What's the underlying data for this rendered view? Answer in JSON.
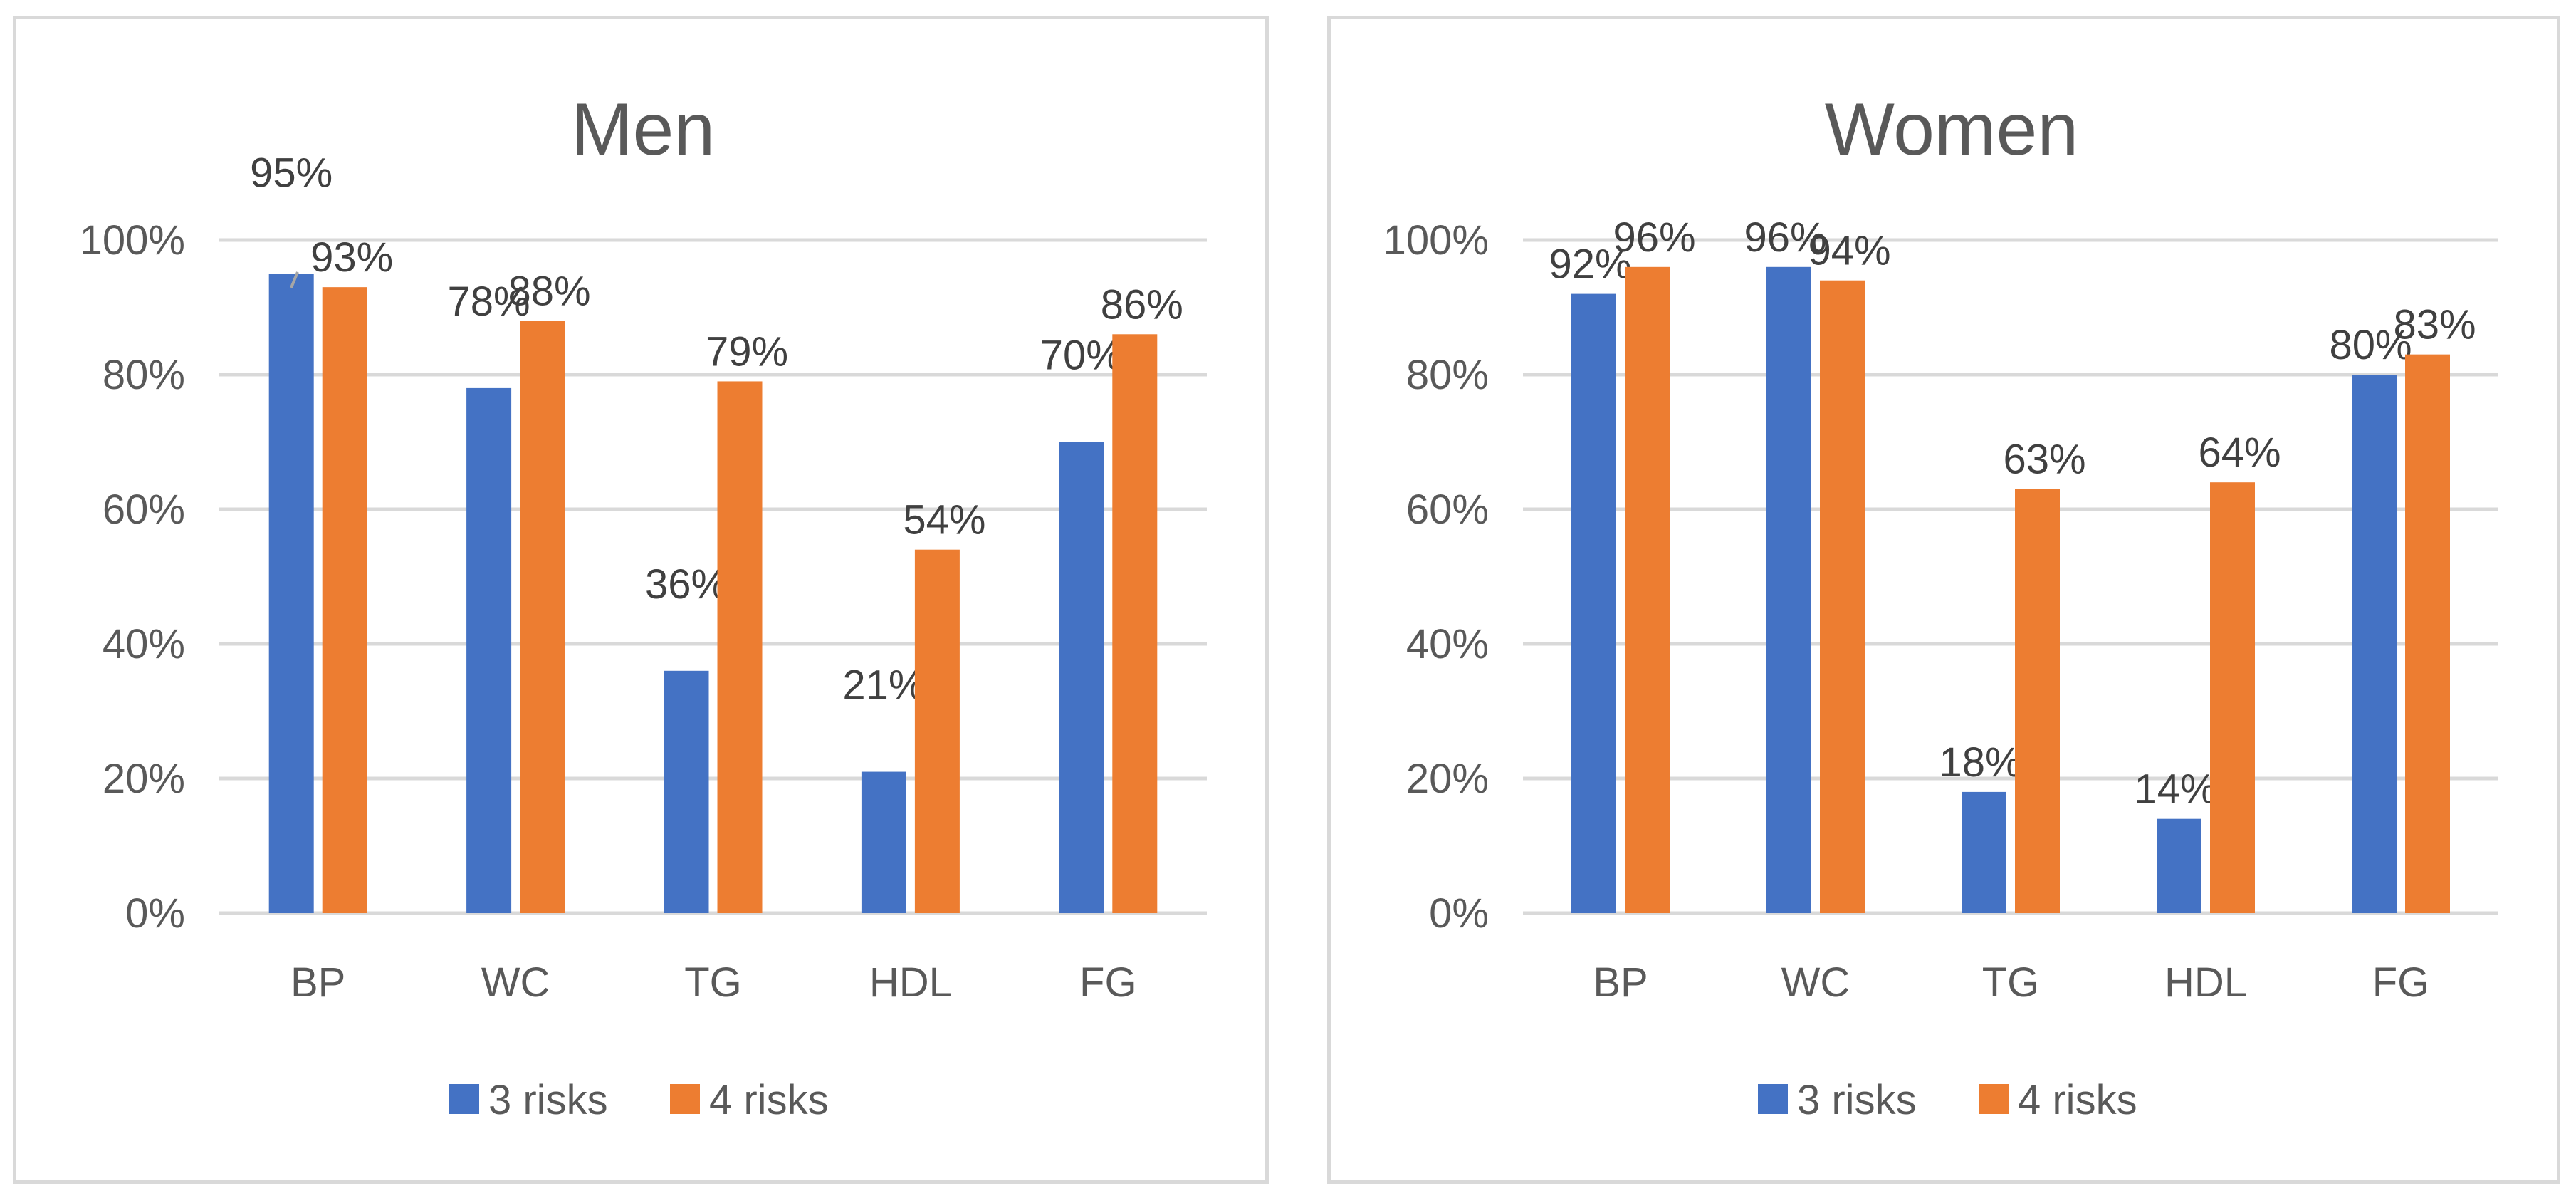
{
  "chart_data": [
    {
      "type": "bar",
      "title": "Men",
      "categories": [
        "BP",
        "WC",
        "TG",
        "HDL",
        "FG"
      ],
      "series": [
        {
          "name": "3 risks",
          "values": [
            95,
            78,
            36,
            21,
            70
          ],
          "labels": [
            "95%",
            "78%",
            "36%",
            "21%",
            "70%"
          ],
          "color": "#4472C4"
        },
        {
          "name": "4 risks",
          "values": [
            93,
            88,
            79,
            54,
            86
          ],
          "labels": [
            "93%",
            "88%",
            "79%",
            "54%",
            "86%"
          ],
          "color": "#ED7D31"
        }
      ],
      "ylim": [
        0,
        100
      ],
      "yticks": [
        "0%",
        "20%",
        "40%",
        "60%",
        "80%",
        "100%"
      ],
      "xlabel": "",
      "ylabel": "",
      "grid": true,
      "legend": "bottom"
    },
    {
      "type": "bar",
      "title": "Women",
      "categories": [
        "BP",
        "WC",
        "TG",
        "HDL",
        "FG"
      ],
      "series": [
        {
          "name": "3 risks",
          "values": [
            92,
            96,
            18,
            14,
            80
          ],
          "labels": [
            "92%",
            "96%",
            "18%",
            "14%",
            "80%"
          ],
          "color": "#4472C4"
        },
        {
          "name": "4 risks",
          "values": [
            96,
            94,
            63,
            64,
            83
          ],
          "labels": [
            "96%",
            "94%",
            "63%",
            "64%",
            "83%"
          ],
          "color": "#ED7D31"
        }
      ],
      "ylim": [
        0,
        100
      ],
      "yticks": [
        "0%",
        "20%",
        "40%",
        "60%",
        "80%",
        "100%"
      ],
      "xlabel": "",
      "ylabel": "",
      "grid": true,
      "legend": "bottom"
    }
  ]
}
